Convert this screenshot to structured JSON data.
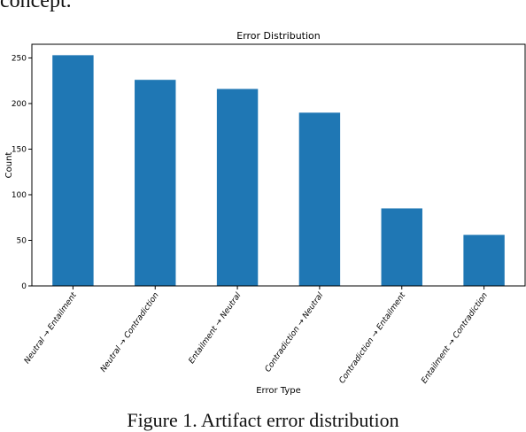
{
  "page": {
    "top_text": "concept.",
    "caption": "Figure 1. Artifact error distribution"
  },
  "chart_data": {
    "type": "bar",
    "title": "Error Distribution",
    "xlabel": "Error Type",
    "ylabel": "Count",
    "categories": [
      "Neutral → Entailment",
      "Neutral → Contradiction",
      "Entailment → Neutral",
      "Contradiction → Neutral",
      "Contradiction → Entailment",
      "Entailment → Contradiction"
    ],
    "values": [
      253,
      226,
      216,
      190,
      85,
      56
    ],
    "ylim": [
      0,
      265
    ],
    "yticks": [
      0,
      50,
      100,
      150,
      200,
      250
    ],
    "bar_color": "#1f77b4",
    "grid": false,
    "legend": "none"
  }
}
